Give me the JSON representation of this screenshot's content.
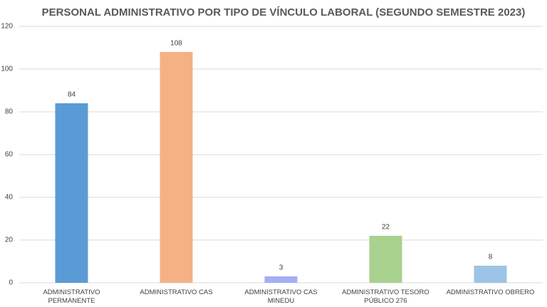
{
  "chart_data": {
    "type": "bar",
    "title": "PERSONAL ADMINISTRATIVO POR TIPO DE VÍNCULO LABORAL (SEGUNDO SEMESTRE 2023)",
    "categories": [
      "ADMINISTRATIVO PERMANENTE",
      "ADMINISTRATIVO CAS",
      "ADMINISTRATIVO CAS MINEDU",
      "ADMINISTRATIVO TESORO PÚBLICO 276",
      "ADMINISTRATIVO OBRERO"
    ],
    "values": [
      84,
      108,
      3,
      22,
      8
    ],
    "colors": [
      "#5b9bd5",
      "#f4b183",
      "#a4aef2",
      "#a9d18e",
      "#9dc3e6"
    ],
    "ylim": [
      0,
      120
    ],
    "yticks": [
      0,
      20,
      40,
      60,
      80,
      100,
      120
    ],
    "grid": true
  }
}
